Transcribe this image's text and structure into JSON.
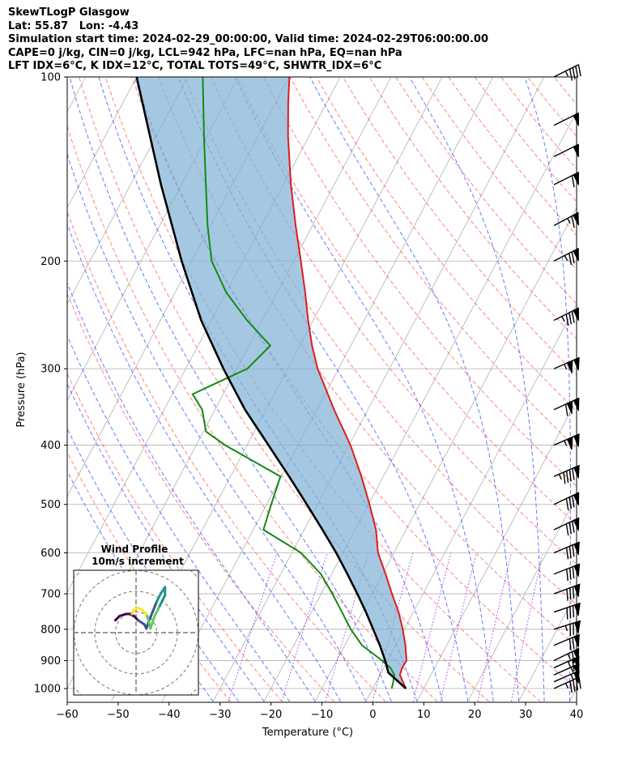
{
  "header": {
    "title": "SkewTLogP Glasgow",
    "location": "Lat: 55.87   Lon: -4.43",
    "times": "Simulation start time: 2024-02-29_00:00:00, Valid time: 2024-02-29T06:00:00.00",
    "params": "CAPE=0 j/kg, CIN=0 j/kg, LCL=942 hPa, LFC=nan hPa, EQ=nan hPa",
    "indices": "LFT IDX=6°C, K IDX=12°C, TOTAL TOTS=49°C, SHWTR_IDX=6°C"
  },
  "chart_data": {
    "type": "line",
    "xlabel": "Temperature (°C)",
    "ylabel": "Pressure (hPa)",
    "x_ticks": [
      -60,
      -50,
      -40,
      -30,
      -20,
      -10,
      0,
      10,
      20,
      30,
      40
    ],
    "y_ticks": [
      100,
      200,
      300,
      400,
      500,
      600,
      700,
      800,
      900,
      1000
    ],
    "xlim": [
      -60,
      40
    ],
    "ylim": [
      1050,
      100
    ],
    "yscale": "log",
    "grid": true,
    "colors": {
      "temperature": "#e41a1c",
      "dewpoint": "#138a13",
      "parcel": "#000000",
      "cape_fill": "#7fb0d5",
      "dry_adiabat": "#ff5a5a",
      "moist_adiabat": "#3b4bff",
      "mixing_ratio": "#8a2be2"
    },
    "series": [
      {
        "key": "temperature",
        "pressure": [
          1000,
          975,
          950,
          925,
          900,
          850,
          800,
          750,
          700,
          650,
          600,
          550,
          500,
          450,
          400,
          350,
          300,
          275,
          250,
          225,
          200,
          175,
          150,
          125,
          110,
          100
        ],
        "values": [
          6.5,
          5.2,
          3.9,
          3.6,
          3.7,
          1.9,
          -0.3,
          -2.9,
          -6.1,
          -9.4,
          -13.1,
          -15.9,
          -19.8,
          -24.3,
          -29.7,
          -36.6,
          -44.1,
          -47.6,
          -51.0,
          -54.5,
          -58.6,
          -63.3,
          -68.5,
          -74.1,
          -77.6,
          -80.0
        ]
      },
      {
        "key": "dewpoint",
        "pressure": [
          1000,
          975,
          950,
          925,
          900,
          850,
          800,
          750,
          700,
          650,
          600,
          550,
          500,
          450,
          400,
          380,
          350,
          330,
          300,
          275,
          250,
          225,
          200,
          175,
          150,
          125,
          100
        ],
        "values": [
          3.7,
          3.3,
          2.8,
          1.3,
          -1.1,
          -6.6,
          -10.5,
          -14.0,
          -17.8,
          -22.1,
          -28.2,
          -38.0,
          -39.1,
          -40.2,
          -54.3,
          -59.5,
          -62.5,
          -66.0,
          -57.9,
          -55.8,
          -63.0,
          -70.0,
          -76.1,
          -80.6,
          -85.2,
          -90.6,
          -97.0
        ]
      },
      {
        "key": "parcel",
        "pressure": [
          1000,
          942,
          900,
          850,
          800,
          750,
          700,
          650,
          600,
          550,
          500,
          450,
          400,
          350,
          300,
          250,
          200,
          150,
          100
        ],
        "values": [
          6.5,
          1.4,
          -0.5,
          -3.1,
          -6.1,
          -9.3,
          -12.9,
          -16.9,
          -21.3,
          -26.4,
          -32.1,
          -38.5,
          -45.8,
          -54.1,
          -62.6,
          -72.0,
          -82.0,
          -94.0,
          -110.0
        ]
      }
    ],
    "wind_barbs": {
      "pressure": [
        1000,
        975,
        950,
        925,
        900,
        850,
        800,
        750,
        700,
        650,
        600,
        550,
        500,
        450,
        400,
        350,
        300,
        250,
        200,
        175,
        150,
        135,
        120,
        100
      ],
      "u": [
        22,
        25,
        27,
        31,
        31,
        33,
        38,
        38,
        38,
        38,
        38,
        38,
        38,
        46,
        50,
        52,
        50,
        40,
        35,
        30,
        28,
        24,
        22,
        20
      ],
      "v": [
        10,
        11,
        12,
        14,
        15,
        14,
        12,
        13,
        14,
        15,
        16,
        18,
        18,
        20,
        22,
        24,
        22,
        20,
        18,
        16,
        14,
        12,
        11,
        10
      ]
    },
    "hodograph": {
      "title": "Wind Profile",
      "subtitle": "10m/s increment",
      "rings": [
        10,
        20,
        30,
        40
      ],
      "points": [
        [
          -10,
          6
        ],
        [
          -8,
          8
        ],
        [
          -5,
          9
        ],
        [
          -3,
          9
        ],
        [
          -1,
          8
        ],
        [
          1,
          6
        ],
        [
          4,
          4
        ],
        [
          5,
          2
        ],
        [
          6,
          5
        ],
        [
          8,
          10
        ],
        [
          10,
          15
        ],
        [
          12,
          19
        ],
        [
          14,
          22
        ],
        [
          14,
          18
        ],
        [
          11,
          12
        ],
        [
          9,
          8
        ],
        [
          8,
          5
        ],
        [
          7,
          2
        ],
        [
          6,
          6
        ],
        [
          5,
          9
        ],
        [
          3,
          11
        ],
        [
          1,
          12
        ],
        [
          -1,
          11
        ],
        [
          -2,
          9
        ]
      ]
    }
  }
}
